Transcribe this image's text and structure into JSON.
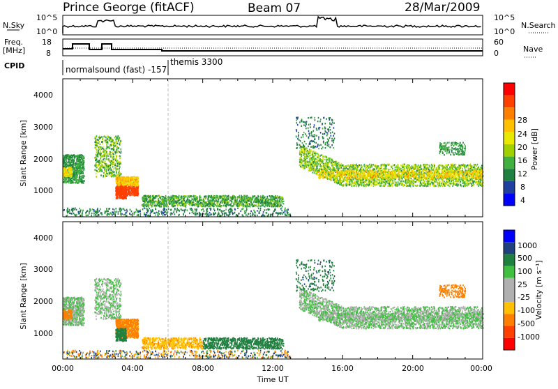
{
  "header": {
    "station": "Prince George (fitACF)",
    "beam": "Beam 07",
    "date": "28/Mar/2009"
  },
  "top_panels": {
    "nsky_label": "N.Sky",
    "nsky_ticks": [
      "10^5",
      "10^0"
    ],
    "nsearch_label": "N.Search",
    "nsearch_ticks": [
      "10^5",
      "10^0"
    ],
    "freq_label": "Freq.",
    "freq_unit": "[MHz]",
    "freq_ticks": [
      "18",
      "8"
    ],
    "nave_label": "Nave",
    "nave_ticks": [
      "60",
      "0"
    ],
    "cpid_label": "CPID",
    "cpid_mode1": "normalsound (fast) -157",
    "cpid_mode2": "themis 3300"
  },
  "axes": {
    "ylabel": "Slant Range [km]",
    "yticks": [
      "4000",
      "3000",
      "2000",
      "1000"
    ],
    "xticks": [
      "00:00",
      "04:00",
      "08:00",
      "12:00",
      "16:00",
      "20:00",
      "00:00"
    ],
    "xlabel": "Time UT"
  },
  "power_scale": {
    "label": "Power [dB]",
    "ticks": [
      "28",
      "24",
      "20",
      "16",
      "12",
      "8",
      "4"
    ],
    "colors": [
      "#ff0000",
      "#ff4000",
      "#ff8000",
      "#ffc000",
      "#e8e800",
      "#a0d000",
      "#40b040",
      "#208040",
      "#2040a0",
      "#0000ff"
    ]
  },
  "velocity_scale": {
    "label": "Velocity [m s⁻¹]",
    "ticks": [
      "1000",
      "500",
      "100",
      "25",
      "-25",
      "-100",
      "-500",
      "-1000"
    ],
    "colors": [
      "#0000ff",
      "#204080",
      "#208040",
      "#40c040",
      "#b0b0b0",
      "#b0b0b0",
      "#ffc000",
      "#ff8000",
      "#ff4000",
      "#ff0000"
    ]
  },
  "chart_data": [
    {
      "type": "heatmap",
      "title": "",
      "xlabel": "",
      "ylabel": "Slant Range [km]",
      "xlim": [
        "00:00",
        "24:00"
      ],
      "ylim": [
        200,
        4600
      ],
      "colorbar": "Power [dB]",
      "colorbar_range": [
        0,
        32
      ],
      "regions": [
        {
          "t": [
            0.0,
            3.5
          ],
          "range": [
            1200,
            2100
          ],
          "power": 10
        },
        {
          "t": [
            3.0,
            4.4
          ],
          "range": [
            800,
            1400
          ],
          "power": 28
        },
        {
          "t": [
            4.0,
            13.0
          ],
          "range": [
            400,
            900
          ],
          "power": 8
        },
        {
          "t": [
            13.5,
            24.0
          ],
          "range": [
            1200,
            2400
          ],
          "power": 14
        }
      ]
    },
    {
      "type": "heatmap",
      "title": "",
      "xlabel": "Time UT",
      "ylabel": "Slant Range [km]",
      "xlim": [
        "00:00",
        "24:00"
      ],
      "ylim": [
        200,
        4600
      ],
      "colorbar": "Velocity [m s⁻¹]",
      "colorbar_range": [
        -1000,
        1000
      ],
      "regions": [
        {
          "t": [
            0.0,
            3.5
          ],
          "range": [
            1200,
            2100
          ],
          "velocity": 0
        },
        {
          "t": [
            3.0,
            4.4
          ],
          "range": [
            800,
            1600
          ],
          "velocity": -100
        },
        {
          "t": [
            4.5,
            13.0
          ],
          "range": [
            400,
            900
          ],
          "velocity": -50
        },
        {
          "t": [
            13.5,
            24.0
          ],
          "range": [
            1100,
            2300
          ],
          "velocity": 0
        }
      ]
    }
  ]
}
